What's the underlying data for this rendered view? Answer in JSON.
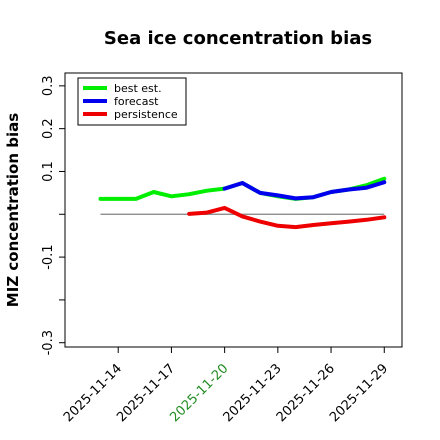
{
  "chart_data": {
    "type": "line",
    "title": "Sea ice concentration bias",
    "ylabel": "MIZ concentration bias",
    "xlabel": "",
    "ylim": [
      -0.31,
      0.33
    ],
    "yticks": [
      {
        "value": -0.3,
        "label": "-0.3"
      },
      {
        "value": -0.2,
        "label": ""
      },
      {
        "value": -0.1,
        "label": "-0.1"
      },
      {
        "value": 0.0,
        "label": ""
      },
      {
        "value": 0.1,
        "label": "0.1"
      },
      {
        "value": 0.2,
        "label": "0.2"
      },
      {
        "value": 0.3,
        "label": "0.3"
      }
    ],
    "xlim": [
      "2025-11-11",
      "2025-11-30"
    ],
    "xticks": [
      {
        "date": "2025-11-14",
        "label": "2025-11-14",
        "color": "#000000"
      },
      {
        "date": "2025-11-17",
        "label": "2025-11-17",
        "color": "#000000"
      },
      {
        "date": "2025-11-20",
        "label": "2025-11-20",
        "color": "#228b22"
      },
      {
        "date": "2025-11-23",
        "label": "2025-11-23",
        "color": "#000000"
      },
      {
        "date": "2025-11-26",
        "label": "2025-11-26",
        "color": "#000000"
      },
      {
        "date": "2025-11-29",
        "label": "2025-11-29",
        "color": "#000000"
      }
    ],
    "zero_line": {
      "y": 0.0,
      "x_start": "2025-11-13",
      "x_end": "2025-11-29",
      "color": "#808080"
    },
    "grid": false,
    "legend_position": "top-left",
    "series": [
      {
        "name": "best est.",
        "color": "#00ee00",
        "points": [
          {
            "date": "2025-11-13",
            "y": 0.036
          },
          {
            "date": "2025-11-14",
            "y": 0.036
          },
          {
            "date": "2025-11-15",
            "y": 0.036
          },
          {
            "date": "2025-11-16",
            "y": 0.052
          },
          {
            "date": "2025-11-17",
            "y": 0.042
          },
          {
            "date": "2025-11-18",
            "y": 0.047
          },
          {
            "date": "2025-11-19",
            "y": 0.055
          },
          {
            "date": "2025-11-20",
            "y": 0.06
          },
          {
            "date": "2025-11-21",
            "y": 0.073
          },
          {
            "date": "2025-11-22",
            "y": 0.05
          },
          {
            "date": "2025-11-23",
            "y": 0.042
          },
          {
            "date": "2025-11-24",
            "y": 0.036
          },
          {
            "date": "2025-11-25",
            "y": 0.04
          },
          {
            "date": "2025-11-26",
            "y": 0.052
          },
          {
            "date": "2025-11-27",
            "y": 0.058
          },
          {
            "date": "2025-11-28",
            "y": 0.068
          },
          {
            "date": "2025-11-29",
            "y": 0.083
          }
        ]
      },
      {
        "name": "forecast",
        "color": "#0000ee",
        "points": [
          {
            "date": "2025-11-20",
            "y": 0.06
          },
          {
            "date": "2025-11-21",
            "y": 0.073
          },
          {
            "date": "2025-11-22",
            "y": 0.05
          },
          {
            "date": "2025-11-23",
            "y": 0.044
          },
          {
            "date": "2025-11-24",
            "y": 0.037
          },
          {
            "date": "2025-11-25",
            "y": 0.04
          },
          {
            "date": "2025-11-26",
            "y": 0.052
          },
          {
            "date": "2025-11-27",
            "y": 0.058
          },
          {
            "date": "2025-11-28",
            "y": 0.062
          },
          {
            "date": "2025-11-29",
            "y": 0.075
          }
        ]
      },
      {
        "name": "persistence",
        "color": "#ee0000",
        "points": [
          {
            "date": "2025-11-18",
            "y": 0.001
          },
          {
            "date": "2025-11-19",
            "y": 0.004
          },
          {
            "date": "2025-11-20",
            "y": 0.015
          },
          {
            "date": "2025-11-21",
            "y": -0.005
          },
          {
            "date": "2025-11-22",
            "y": -0.017
          },
          {
            "date": "2025-11-23",
            "y": -0.027
          },
          {
            "date": "2025-11-24",
            "y": -0.03
          },
          {
            "date": "2025-11-25",
            "y": -0.025
          },
          {
            "date": "2025-11-26",
            "y": -0.021
          },
          {
            "date": "2025-11-27",
            "y": -0.017
          },
          {
            "date": "2025-11-28",
            "y": -0.013
          },
          {
            "date": "2025-11-29",
            "y": -0.007
          }
        ]
      }
    ]
  }
}
